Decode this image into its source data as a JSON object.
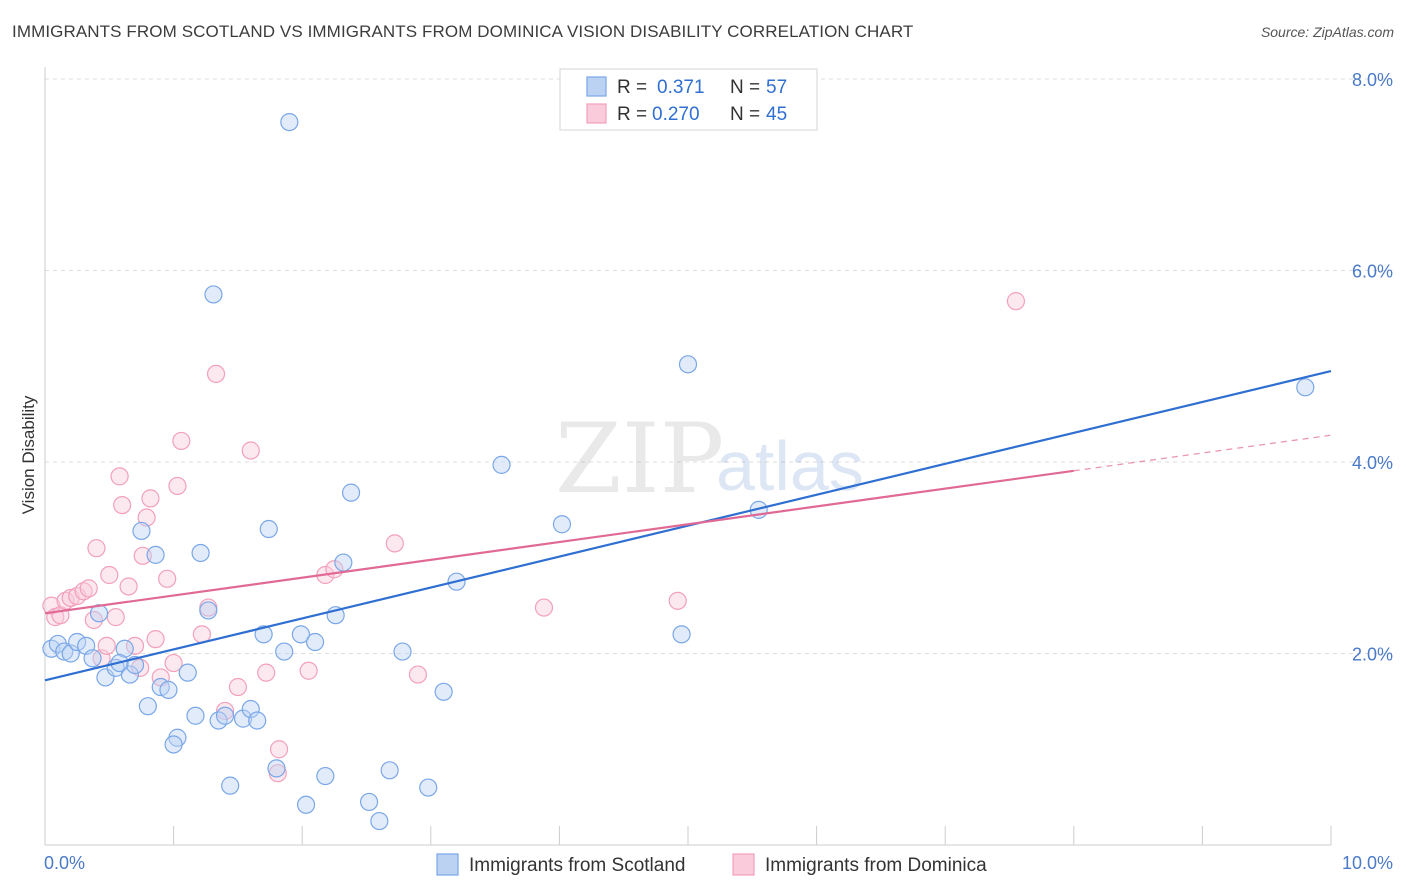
{
  "chart_data": {
    "type": "scatter",
    "title": "IMMIGRANTS FROM SCOTLAND VS IMMIGRANTS FROM DOMINICA VISION DISABILITY CORRELATION CHART",
    "source": "Source: ZipAtlas.com",
    "xlabel": "",
    "ylabel": "Vision Disability",
    "xlim": [
      0,
      10
    ],
    "ylim": [
      0,
      8
    ],
    "x_tick_labels": [
      "0.0%",
      "10.0%"
    ],
    "y_ticks": [
      2,
      4,
      6,
      8
    ],
    "y_tick_labels": [
      "2.0%",
      "4.0%",
      "6.0%",
      "8.0%"
    ],
    "grid": true,
    "legend_position": "top-center",
    "watermark": {
      "zip": "ZIP",
      "atlas": "atlas"
    },
    "colors": {
      "scotland": "#7aa7e8",
      "scotland_line": "#2f6fd1",
      "dominica": "#f2a0bb",
      "dominica_line": "#e06a95",
      "value_text": "#2f6fd1"
    },
    "legend": [
      {
        "r_label": "R =",
        "r_value": "0.371",
        "n_label": "N =",
        "n_value": "57"
      },
      {
        "r_label": "R =",
        "r_value": "0.270",
        "n_label": "N =",
        "n_value": "45"
      }
    ],
    "series": [
      {
        "name": "Immigrants from Scotland",
        "trend": {
          "x0": 0.0,
          "y0": 1.72,
          "x1": 10.0,
          "y1": 4.95,
          "dashed_from": null
        },
        "points": [
          [
            0.05,
            2.05
          ],
          [
            0.1,
            2.1
          ],
          [
            0.15,
            2.02
          ],
          [
            0.2,
            2.0
          ],
          [
            0.25,
            2.12
          ],
          [
            0.32,
            2.08
          ],
          [
            0.37,
            1.95
          ],
          [
            0.42,
            2.42
          ],
          [
            0.47,
            1.75
          ],
          [
            0.55,
            1.85
          ],
          [
            0.62,
            2.05
          ],
          [
            0.66,
            1.78
          ],
          [
            0.7,
            1.88
          ],
          [
            0.75,
            3.28
          ],
          [
            0.8,
            1.45
          ],
          [
            0.86,
            3.03
          ],
          [
            0.9,
            1.65
          ],
          [
            0.96,
            1.62
          ],
          [
            1.03,
            1.12
          ],
          [
            1.11,
            1.8
          ],
          [
            1.17,
            1.35
          ],
          [
            1.21,
            3.05
          ],
          [
            1.27,
            2.45
          ],
          [
            1.31,
            5.75
          ],
          [
            1.35,
            1.3
          ],
          [
            1.4,
            1.35
          ],
          [
            1.44,
            0.62
          ],
          [
            1.54,
            1.32
          ],
          [
            1.6,
            1.42
          ],
          [
            1.7,
            2.2
          ],
          [
            1.74,
            3.3
          ],
          [
            1.86,
            2.02
          ],
          [
            1.9,
            7.55
          ],
          [
            1.99,
            2.2
          ],
          [
            2.03,
            0.42
          ],
          [
            2.1,
            2.12
          ],
          [
            2.18,
            0.72
          ],
          [
            2.26,
            2.4
          ],
          [
            2.32,
            2.95
          ],
          [
            2.38,
            3.68
          ],
          [
            2.52,
            0.45
          ],
          [
            2.6,
            0.25
          ],
          [
            2.68,
            0.78
          ],
          [
            2.78,
            2.02
          ],
          [
            2.98,
            0.6
          ],
          [
            3.1,
            1.6
          ],
          [
            3.2,
            2.75
          ],
          [
            3.55,
            3.97
          ],
          [
            4.02,
            3.35
          ],
          [
            4.95,
            2.2
          ],
          [
            5.0,
            5.02
          ],
          [
            5.55,
            3.5
          ],
          [
            9.8,
            4.78
          ],
          [
            1.8,
            0.8
          ],
          [
            0.58,
            1.9
          ],
          [
            1.0,
            1.05
          ],
          [
            1.65,
            1.3
          ]
        ]
      },
      {
        "name": "Immigrants from Dominica",
        "trend": {
          "x0": 0.0,
          "y0": 2.42,
          "x1": 10.0,
          "y1": 4.28,
          "dashed_from": 8.0
        },
        "points": [
          [
            0.05,
            2.5
          ],
          [
            0.08,
            2.38
          ],
          [
            0.12,
            2.4
          ],
          [
            0.16,
            2.55
          ],
          [
            0.2,
            2.58
          ],
          [
            0.25,
            2.6
          ],
          [
            0.3,
            2.65
          ],
          [
            0.34,
            2.68
          ],
          [
            0.38,
            2.35
          ],
          [
            0.4,
            3.1
          ],
          [
            0.44,
            1.95
          ],
          [
            0.48,
            2.08
          ],
          [
            0.5,
            2.82
          ],
          [
            0.58,
            3.85
          ],
          [
            0.6,
            3.55
          ],
          [
            0.65,
            2.7
          ],
          [
            0.7,
            2.08
          ],
          [
            0.74,
            1.85
          ],
          [
            0.76,
            3.02
          ],
          [
            0.79,
            3.42
          ],
          [
            0.82,
            3.62
          ],
          [
            0.86,
            2.15
          ],
          [
            0.9,
            1.75
          ],
          [
            0.95,
            2.78
          ],
          [
            1.0,
            1.9
          ],
          [
            1.03,
            3.75
          ],
          [
            1.06,
            4.22
          ],
          [
            1.22,
            2.2
          ],
          [
            1.27,
            2.48
          ],
          [
            1.33,
            4.92
          ],
          [
            1.4,
            1.4
          ],
          [
            1.5,
            1.65
          ],
          [
            1.6,
            4.12
          ],
          [
            1.72,
            1.8
          ],
          [
            1.82,
            1.0
          ],
          [
            1.81,
            0.75
          ],
          [
            2.05,
            1.82
          ],
          [
            2.18,
            2.82
          ],
          [
            2.25,
            2.88
          ],
          [
            2.72,
            3.15
          ],
          [
            2.9,
            1.78
          ],
          [
            3.88,
            2.48
          ],
          [
            4.92,
            2.55
          ],
          [
            7.55,
            5.68
          ],
          [
            0.55,
            2.38
          ]
        ]
      }
    ]
  },
  "bottom_legend": [
    "Immigrants from Scotland",
    "Immigrants from Dominica"
  ]
}
